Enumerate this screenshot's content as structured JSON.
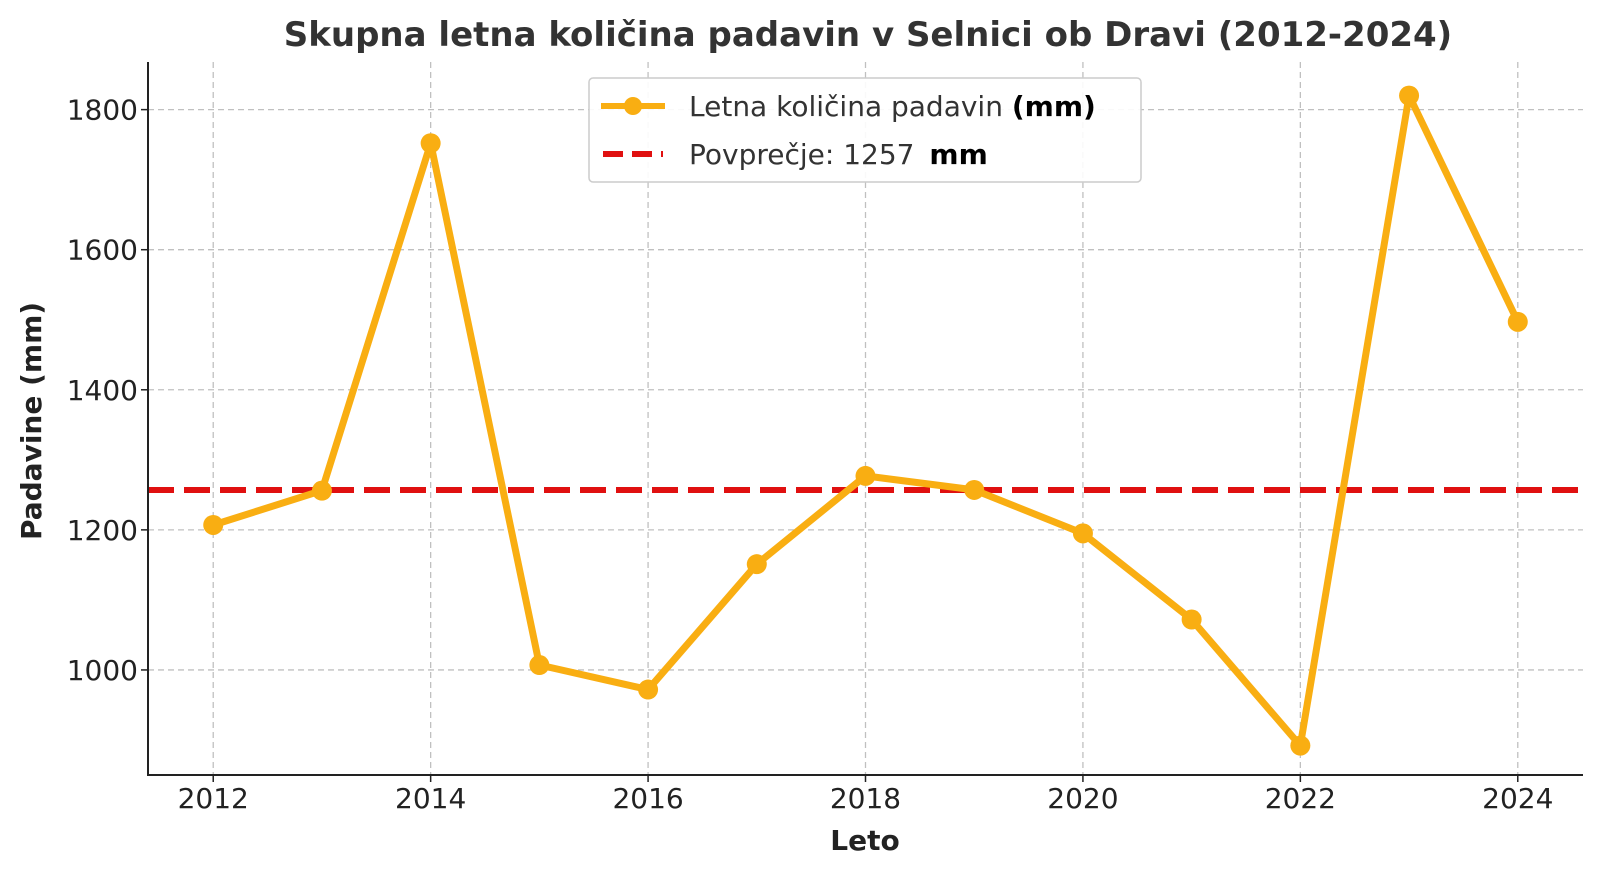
{
  "chart_data": {
    "type": "line",
    "title": "Skupna letna količina padavin v Selnici ob Dravi (2012-2024)",
    "xlabel": "Leto",
    "ylabel": "Padavine (mm)",
    "x": [
      2012,
      2013,
      2014,
      2015,
      2016,
      2017,
      2018,
      2019,
      2020,
      2021,
      2022,
      2023,
      2024
    ],
    "series": [
      {
        "name": "Letna količina padavin (mm)",
        "name_main": "Letna količina padavin",
        "name_unit": "(mm)",
        "color": "#F9AE12",
        "marker": "circle",
        "values": [
          1207,
          1256,
          1752,
          1007,
          972,
          1151,
          1277,
          1257,
          1195,
          1072,
          892,
          1820,
          1497
        ]
      }
    ],
    "reference_lines": [
      {
        "name": "Povprečje: 1257 mm",
        "name_main": "Povprečje: 1257",
        "name_unit": "mm",
        "value": 1257,
        "color": "#E01010",
        "style": "dashed"
      }
    ],
    "xticks": [
      "2012",
      "2014",
      "2016",
      "2018",
      "2020",
      "2022",
      "2024"
    ],
    "yticks": [
      "1000",
      "1200",
      "1400",
      "1600",
      "1800"
    ],
    "xlim": [
      2011.4,
      2024.6
    ],
    "ylim": [
      850,
      1868
    ],
    "grid": true,
    "legend_position": "top-center"
  }
}
